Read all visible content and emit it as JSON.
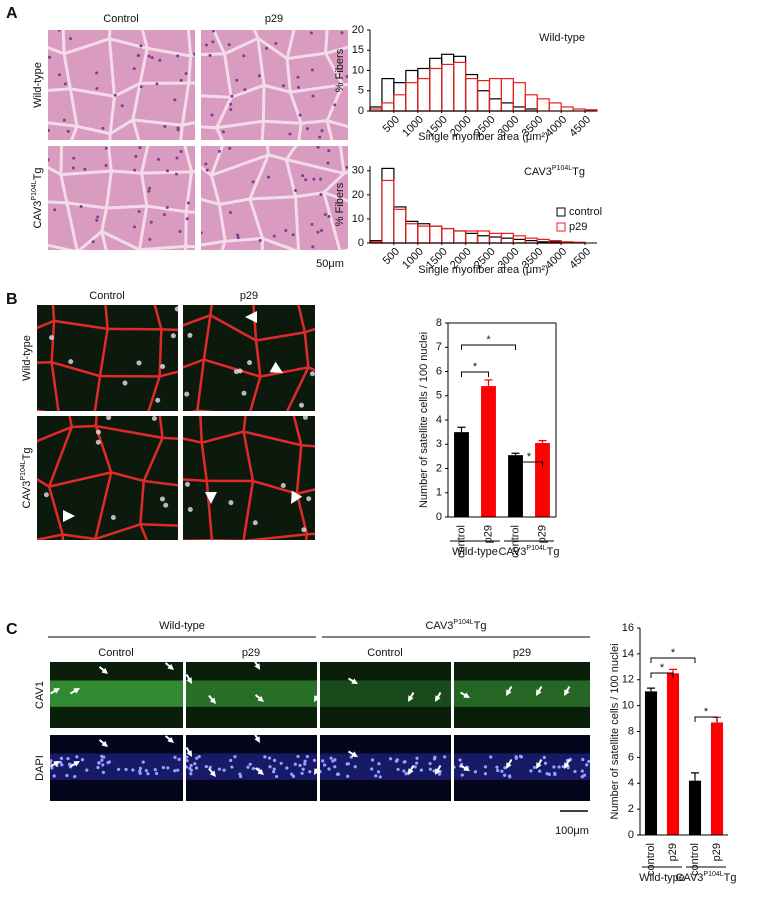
{
  "figure": {
    "panels": [
      "A",
      "B",
      "C"
    ],
    "a": {
      "columns": [
        "Control",
        "p29"
      ],
      "rows": [
        [
          "Wild-type"
        ],
        [
          "CAV3",
          "P104L",
          "Tg"
        ]
      ],
      "scale": "50μm"
    },
    "b": {
      "columns": [
        "Control",
        "p29"
      ],
      "rows": [
        [
          "Wild-type"
        ],
        [
          "CAV3",
          "P104L",
          "Tg"
        ]
      ]
    },
    "c": {
      "groups": [
        [
          "Wild-type"
        ],
        [
          "CAV3",
          "P104L",
          "Tg"
        ]
      ],
      "columns": [
        "Control",
        "p29",
        "Control",
        "p29"
      ],
      "rows": [
        "CAV1",
        "DAPI"
      ],
      "scale": "100μm"
    }
  },
  "chart_data": [
    {
      "type": "histogram",
      "title": [
        "Wild-type"
      ],
      "x_label": "Single myofiber area (μm²)",
      "y_label": "% Fibers",
      "bins": [
        0,
        250,
        500,
        750,
        1000,
        1250,
        1500,
        1750,
        2000,
        2250,
        2500,
        2750,
        3000,
        3250,
        3500,
        3750,
        4000,
        4250,
        4500,
        4750
      ],
      "series": [
        {
          "color": "#000000",
          "values": [
            1,
            8,
            7,
            10,
            10.5,
            13,
            14,
            13.5,
            9,
            5,
            3,
            2,
            1,
            0.5,
            0,
            0,
            0,
            0,
            0
          ]
        },
        {
          "color": "#e8201c",
          "values": [
            0.5,
            2,
            4,
            7,
            8,
            10.5,
            11.5,
            12,
            8,
            7.5,
            8,
            8,
            7,
            4,
            3,
            2,
            1,
            0.5,
            0.3
          ]
        }
      ],
      "xlim": [
        0,
        4750
      ],
      "xticks": [
        500,
        1000,
        1500,
        2000,
        2500,
        3000,
        3500,
        4000,
        4500
      ],
      "ylim": [
        0,
        20
      ],
      "yticks": [
        0,
        5,
        10,
        15,
        20
      ]
    },
    {
      "type": "histogram",
      "title": [
        "CAV3",
        "P104L",
        "Tg"
      ],
      "x_label": "Single myofiber area (μm²)",
      "y_label": "% Fibers",
      "bins": [
        0,
        250,
        500,
        750,
        1000,
        1250,
        1500,
        1750,
        2000,
        2250,
        2500,
        2750,
        3000,
        3250,
        3500,
        3750,
        4000,
        4250,
        4500,
        4750
      ],
      "series": [
        {
          "name": "control",
          "color": "#000000",
          "values": [
            1,
            31,
            15,
            9,
            8,
            7,
            6,
            5,
            4,
            3,
            2.5,
            2,
            1.5,
            1,
            0.5,
            0.5,
            0,
            0,
            0
          ]
        },
        {
          "name": "p29",
          "color": "#e8201c",
          "values": [
            0.5,
            26,
            14,
            8,
            7,
            7,
            6,
            5,
            5,
            5,
            4,
            4,
            3,
            2,
            1.5,
            1,
            0.5,
            0.3,
            0
          ]
        }
      ],
      "xlim": [
        0,
        4750
      ],
      "xticks": [
        500,
        1000,
        1500,
        2000,
        2500,
        3000,
        3500,
        4000,
        4500
      ],
      "ylim": [
        0,
        32
      ],
      "yticks": [
        0,
        10,
        20,
        30
      ],
      "legend": "right"
    },
    {
      "type": "bar",
      "y_label": "Number of satellite cells / 100 nuclei",
      "categories": [
        "control",
        "p29",
        "control",
        "p29"
      ],
      "values": [
        3.5,
        5.4,
        2.55,
        3.05
      ],
      "errors": [
        0.2,
        0.25,
        0.08,
        0.1
      ],
      "colors": [
        "#000000",
        "#ff0000",
        "#000000",
        "#ff0000"
      ],
      "groups": [
        [
          "Wild-type"
        ],
        [
          "CAV3",
          "P104L",
          "Tg"
        ]
      ],
      "significance": [
        "*",
        "*",
        "*"
      ],
      "ylim": [
        0,
        8
      ],
      "yticks": [
        0,
        1,
        2,
        3,
        4,
        5,
        6,
        7,
        8
      ],
      "frame": true
    },
    {
      "type": "bar",
      "y_label": "Number of satellite cells / 100 nuclei",
      "categories": [
        "control",
        "p29",
        "control",
        "p29"
      ],
      "values": [
        11.1,
        12.5,
        4.2,
        8.7
      ],
      "errors": [
        0.25,
        0.3,
        0.6,
        0.4
      ],
      "colors": [
        "#000000",
        "#ff0000",
        "#000000",
        "#ff0000"
      ],
      "groups": [
        [
          "Wild-type"
        ],
        [
          "CAV3",
          "P104L",
          "Tg"
        ]
      ],
      "significance": [
        "*",
        "*",
        "*"
      ],
      "ylim": [
        0,
        16
      ],
      "yticks": [
        0,
        2,
        4,
        6,
        8,
        10,
        12,
        14,
        16
      ],
      "frame": false
    }
  ]
}
